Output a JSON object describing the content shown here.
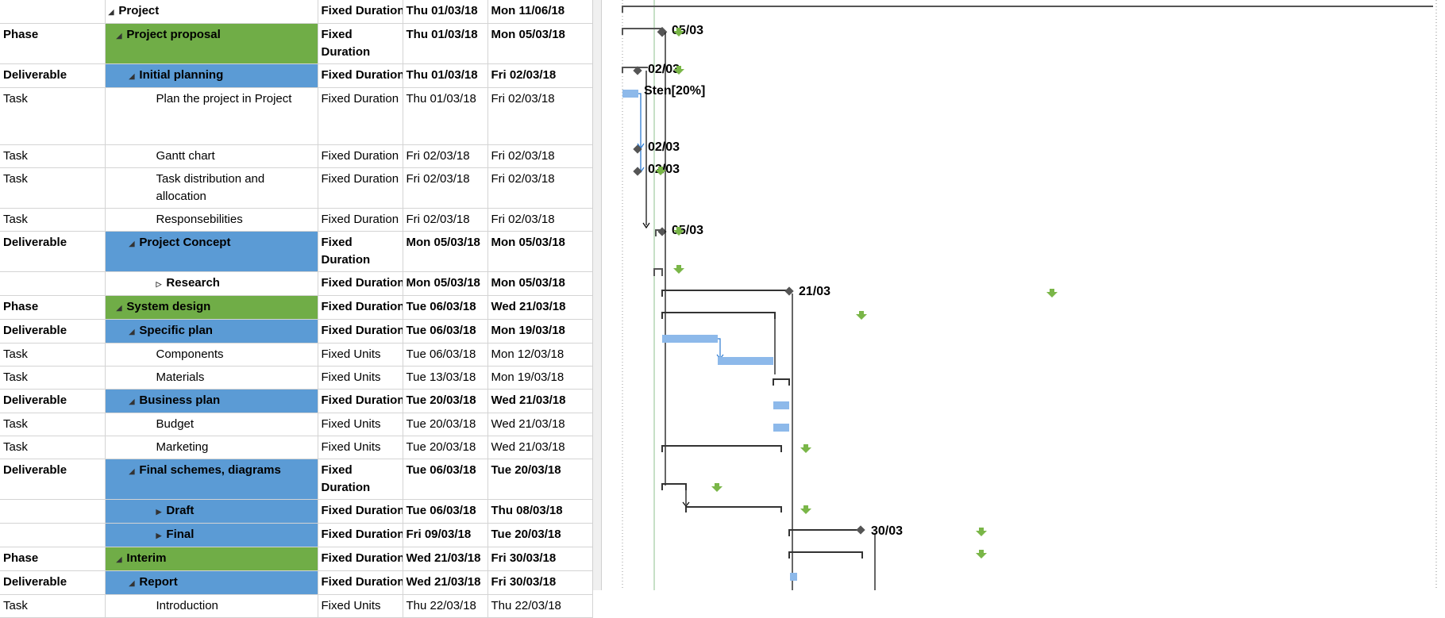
{
  "rows": [
    {
      "type": "",
      "name": "Project",
      "task_type": "Fixed Duration",
      "start": "Thu 01/03/18",
      "finish": "Mon 11/06/18",
      "level": "project"
    },
    {
      "type": "Phase",
      "name": "Project proposal",
      "task_type": "Fixed Duration",
      "start": "Thu 01/03/18",
      "finish": "Mon 05/03/18",
      "level": "phase"
    },
    {
      "type": "Deliverable",
      "name": "Initial planning",
      "task_type": "Fixed Duration",
      "start": "Thu 01/03/18",
      "finish": "Fri 02/03/18",
      "level": "deliverable"
    },
    {
      "type": "Task",
      "name": "Plan the project in Project",
      "task_type": "Fixed Duration",
      "start": "Thu 01/03/18",
      "finish": "Fri 02/03/18",
      "level": "task"
    },
    {
      "type": "Task",
      "name": "Gantt chart",
      "task_type": "Fixed Duration",
      "start": "Fri 02/03/18",
      "finish": "Fri 02/03/18",
      "level": "task"
    },
    {
      "type": "Task",
      "name": "Task distribution and allocation",
      "task_type": "Fixed Duration",
      "start": "Fri 02/03/18",
      "finish": "Fri 02/03/18",
      "level": "task"
    },
    {
      "type": "Task",
      "name": "Responsebilities",
      "task_type": "Fixed Duration",
      "start": "Fri 02/03/18",
      "finish": "Fri 02/03/18",
      "level": "task"
    },
    {
      "type": "Deliverable",
      "name": "Project Concept",
      "task_type": "Fixed Duration",
      "start": "Mon 05/03/18",
      "finish": "Mon 05/03/18",
      "level": "deliverable"
    },
    {
      "type": "",
      "name": "Research",
      "task_type": "Fixed Duration",
      "start": "Mon 05/03/18",
      "finish": "Mon 05/03/18",
      "level": "collapsed"
    },
    {
      "type": "Phase",
      "name": "System design",
      "task_type": "Fixed Duration",
      "start": "Tue 06/03/18",
      "finish": "Wed 21/03/18",
      "level": "phase"
    },
    {
      "type": "Deliverable",
      "name": "Specific plan",
      "task_type": "Fixed Duration",
      "start": "Tue 06/03/18",
      "finish": "Mon 19/03/18",
      "level": "deliverable"
    },
    {
      "type": "Task",
      "name": "Components",
      "task_type": "Fixed Units",
      "start": "Tue 06/03/18",
      "finish": "Mon 12/03/18",
      "level": "task"
    },
    {
      "type": "Task",
      "name": "Materials",
      "task_type": "Fixed Units",
      "start": "Tue 13/03/18",
      "finish": "Mon 19/03/18",
      "level": "task"
    },
    {
      "type": "Deliverable",
      "name": "Business plan",
      "task_type": "Fixed Duration",
      "start": "Tue 20/03/18",
      "finish": "Wed 21/03/18",
      "level": "deliverable"
    },
    {
      "type": "Task",
      "name": "Budget",
      "task_type": "Fixed Units",
      "start": "Tue 20/03/18",
      "finish": "Wed 21/03/18",
      "level": "task"
    },
    {
      "type": "Task",
      "name": "Marketing",
      "task_type": "Fixed Units",
      "start": "Tue 20/03/18",
      "finish": "Wed 21/03/18",
      "level": "task"
    },
    {
      "type": "Deliverable",
      "name": "Final schemes, diagrams",
      "task_type": "Fixed Duration",
      "start": "Tue 06/03/18",
      "finish": "Tue 20/03/18",
      "level": "deliverable"
    },
    {
      "type": "",
      "name": "Draft",
      "task_type": "Fixed Duration",
      "start": "Tue 06/03/18",
      "finish": "Thu 08/03/18",
      "level": "collapsed-blue"
    },
    {
      "type": "",
      "name": "Final",
      "task_type": "Fixed Duration",
      "start": "Fri 09/03/18",
      "finish": "Tue 20/03/18",
      "level": "collapsed-blue"
    },
    {
      "type": "Phase",
      "name": "Interim",
      "task_type": "Fixed Duration",
      "start": "Wed 21/03/18",
      "finish": "Fri 30/03/18",
      "level": "phase"
    },
    {
      "type": "Deliverable",
      "name": "Report",
      "task_type": "Fixed Duration",
      "start": "Wed 21/03/18",
      "finish": "Fri 30/03/18",
      "level": "deliverable"
    },
    {
      "type": "Task",
      "name": "Introduction",
      "task_type": "Fixed Units",
      "start": "Thu 22/03/18",
      "finish": "Thu 22/03/18",
      "level": "task"
    }
  ],
  "gantt_labels": {
    "proposal": "05/03",
    "initial": "02/03",
    "plan_resource": "Sten[20%]",
    "gantt_chart": "02/03",
    "distribution": "02/03",
    "concept": "05/03",
    "system_design": "21/03",
    "interim": "30/03"
  },
  "colors": {
    "phase": "#70ad47",
    "deliverable": "#5b9bd5",
    "task_bar": "#8db9ea",
    "link": "#2e7bd1"
  }
}
